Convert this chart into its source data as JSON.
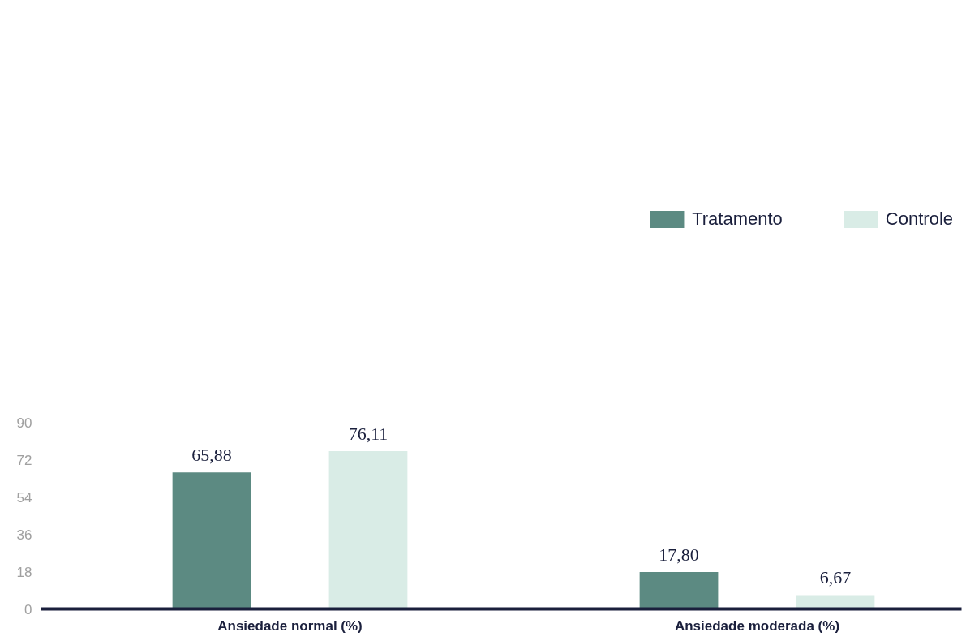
{
  "chart_data": {
    "type": "bar",
    "categories": [
      "Ansiedade normal (%)",
      "Ansiedade moderada (%)"
    ],
    "series": [
      {
        "name": "Tratamento",
        "color": "#5c8a82",
        "values": [
          65.88,
          17.8
        ],
        "value_labels": [
          "65,88",
          "17,80"
        ]
      },
      {
        "name": "Controle",
        "color": "#d9ece6",
        "values": [
          76.11,
          6.67
        ],
        "value_labels": [
          "76,11",
          "6,67"
        ]
      }
    ],
    "ylim": [
      0,
      90
    ],
    "yticks": [
      0,
      18,
      36,
      54,
      72,
      90
    ],
    "grid": false,
    "legend": "top right"
  }
}
